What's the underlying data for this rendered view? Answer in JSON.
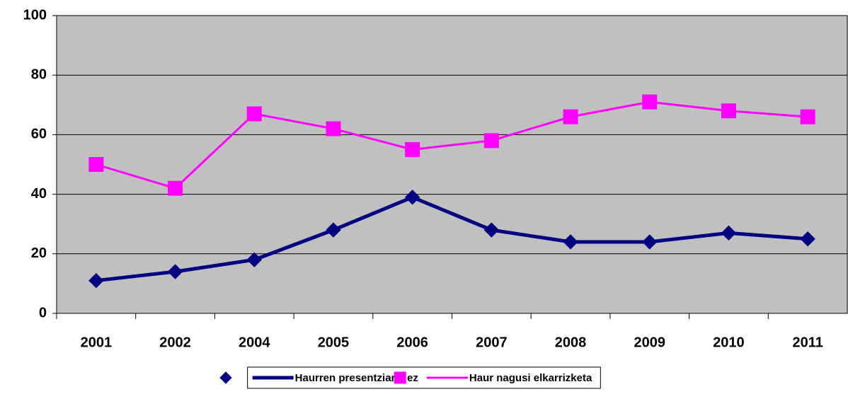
{
  "chart_data": {
    "type": "line",
    "categories": [
      "2001",
      "2002",
      "2004",
      "2005",
      "2006",
      "2007",
      "2008",
      "2009",
      "2010",
      "2011"
    ],
    "series": [
      {
        "name": "Haurren presentziarik ez",
        "color": "#000080",
        "marker": "diamond",
        "values": [
          11,
          14,
          18,
          28,
          39,
          28,
          24,
          24,
          27,
          25
        ]
      },
      {
        "name": "Haur nagusi elkarrizketa",
        "color": "#ff00ff",
        "marker": "square",
        "values": [
          50,
          42,
          67,
          62,
          55,
          58,
          66,
          71,
          68,
          66
        ]
      }
    ],
    "ylim": [
      0,
      100
    ],
    "yticks": [
      0,
      20,
      40,
      60,
      80,
      100
    ],
    "grid": true,
    "plot_background": "#c0c0c0",
    "legend": "bottom"
  }
}
